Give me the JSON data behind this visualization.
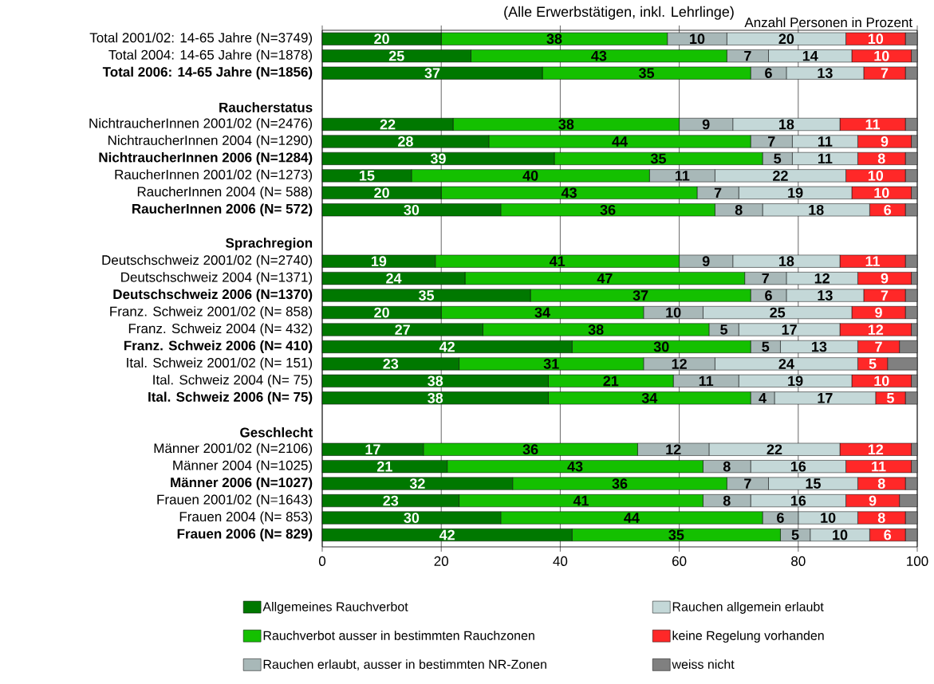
{
  "chart_data": {
    "type": "bar",
    "orientation": "horizontal",
    "stacked": true,
    "title": "(Alle Erwerbstätigen, inkl. Lehrlinge)",
    "xlabel": "Anzahl Personen in Prozent",
    "categories": [
      "Total 2001/02: 14-65 Jahre (N=3749)",
      "Total 2004: 14-65 Jahre (N=1878)",
      "**Total 2006: 14-65 Jahre (N=1856)**",
      null,
      "**Raucherstatus**",
      "NichtraucherInnen 2001/02 (N=2476)",
      "NichtraucherInnen 2004 (N=1290)",
      "**NichtraucherInnen 2006 (N=1284)**",
      "RaucherInnen 2001/02 (N=1273)",
      "RaucherInnen 2004 (N=  588)",
      "**RaucherInnen 2006 (N=  572)**",
      null,
      "**Sprachregion**",
      "Deutschschweiz 2001/02 (N=2740)",
      "Deutschschweiz 2004 (N=1371)",
      "**Deutschschweiz 2006 (N=1370)**",
      "Franz. Schweiz 2001/02 (N=  858)",
      "Franz. Schweiz 2004 (N=  432)",
      "**Franz. Schweiz 2006 (N=  410)**",
      "Ital. Schweiz 2001/02 (N=  151)",
      "Ital. Schweiz 2004 (N=    75)",
      "**Ital. Schweiz 2006 (N=    75)**",
      null,
      "**Geschlecht**",
      "Männer 2001/02 (N=2106)",
      "Männer 2004 (N=1025)",
      "**Männer 2006 (N=1027)**",
      "Frauen 2001/02 (N=1643)",
      "Frauen 2004 (N=  853)",
      "**Frauen 2006 (N=  829)**"
    ],
    "series": [
      {
        "name": "Allgemeines Rauchverbot",
        "color": "#007800",
        "values": [
          20,
          25,
          37,
          null,
          null,
          22,
          28,
          39,
          15,
          20,
          30,
          null,
          null,
          19,
          24,
          35,
          20,
          27,
          42,
          23,
          38,
          38,
          null,
          null,
          17,
          21,
          32,
          23,
          30,
          42
        ],
        "value_labels": [
          "20",
          "25",
          "37",
          null,
          null,
          "22",
          "28",
          "39",
          "15",
          "20",
          "30",
          null,
          null,
          "19",
          "24",
          "35",
          "20",
          "27",
          "42",
          "23",
          "38",
          "38",
          null,
          null,
          "17",
          "21",
          "32",
          "23",
          "30",
          "42"
        ]
      },
      {
        "name": "Rauchverbot ausser in bestimmten Rauchzonen",
        "color": "#14c000",
        "values": [
          38,
          43,
          35,
          null,
          null,
          38,
          44,
          35,
          40,
          43,
          36,
          null,
          null,
          41,
          47,
          37,
          34,
          38,
          30,
          31,
          21,
          34,
          null,
          null,
          36,
          43,
          36,
          41,
          44,
          35
        ],
        "value_labels": [
          "38",
          "43",
          "35",
          null,
          null,
          "38",
          "44",
          "35",
          "40",
          "43",
          "36",
          null,
          null,
          "41",
          "47",
          "37",
          "34",
          "38",
          "30",
          "31",
          "21",
          "34",
          null,
          null,
          "36",
          "43",
          "36",
          "41",
          "44",
          "35"
        ]
      },
      {
        "name": "Rauchen erlaubt, ausser in bestimmten NR-Zonen",
        "color": "#a8b8b8",
        "values": [
          10,
          7,
          6,
          null,
          null,
          9,
          7,
          5,
          11,
          7,
          8,
          null,
          null,
          9,
          7,
          6,
          10,
          5,
          5,
          12,
          11,
          4,
          null,
          null,
          12,
          8,
          7,
          8,
          6,
          5
        ],
        "value_labels": [
          "10",
          "7",
          "6",
          null,
          null,
          "9",
          "7",
          "5",
          "11",
          "7",
          "8",
          null,
          null,
          "9",
          "7",
          "6",
          "10",
          "5",
          "5",
          "12",
          "11",
          "4",
          null,
          null,
          "12",
          "8",
          "7",
          "8",
          "6",
          "5"
        ]
      },
      {
        "name": "Rauchen allgemein erlaubt",
        "color": "#c4d8d8",
        "values": [
          20,
          14,
          13,
          null,
          null,
          18,
          11,
          11,
          22,
          19,
          18,
          null,
          null,
          18,
          12,
          13,
          25,
          17,
          13,
          24,
          19,
          17,
          null,
          null,
          22,
          16,
          15,
          16,
          10,
          10
        ],
        "value_labels": [
          "20",
          "14",
          "13",
          null,
          null,
          "18",
          "11",
          "11",
          "22",
          "19",
          "18",
          null,
          null,
          "18",
          "12",
          "13",
          "25",
          "17",
          "13",
          "24",
          "19",
          "17",
          null,
          null,
          "22",
          "16",
          "15",
          "16",
          "10",
          "10"
        ]
      },
      {
        "name": "keine Regelung vorhanden",
        "color": "#ff2828",
        "values": [
          10,
          10,
          7,
          null,
          null,
          11,
          9,
          8,
          10,
          10,
          6,
          null,
          null,
          11,
          9,
          7,
          9,
          12,
          7,
          5,
          10,
          5,
          null,
          null,
          12,
          11,
          8,
          9,
          8,
          6
        ],
        "value_labels": [
          "10",
          "10",
          "7",
          null,
          null,
          "11",
          "9",
          "8",
          "10",
          "10",
          "6",
          null,
          null,
          "11",
          "9",
          "7",
          "9",
          "12",
          "7",
          "5",
          "10",
          "5",
          null,
          null,
          "12",
          "11",
          "8",
          "9",
          "8",
          "6"
        ]
      },
      {
        "name": "weiss nicht",
        "color": "#808080",
        "values": [
          2,
          1,
          2,
          null,
          null,
          2,
          1,
          2,
          2,
          1,
          2,
          null,
          null,
          2,
          1,
          2,
          2,
          1,
          3,
          5,
          1,
          2,
          null,
          null,
          1,
          1,
          2,
          3,
          2,
          2
        ]
      }
    ],
    "xlim": [
      0,
      100
    ],
    "xticks": [
      0,
      20,
      40,
      60,
      80,
      100
    ],
    "grid": "x",
    "legend": "bottom"
  }
}
